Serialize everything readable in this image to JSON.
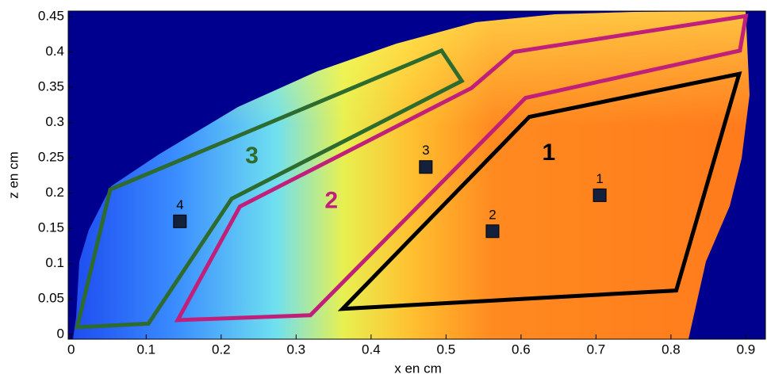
{
  "chart_data": {
    "type": "scatter",
    "xlabel": "x en cm",
    "ylabel": "z en cm",
    "xlim": [
      -0.004,
      0.926
    ],
    "ylim": [
      -0.007,
      0.458
    ],
    "xticks": [
      0,
      0.1,
      0.2,
      0.3,
      0.4,
      0.5,
      0.6,
      0.7,
      0.8,
      0.9
    ],
    "yticks": [
      0,
      0.05,
      0.1,
      0.15,
      0.2,
      0.25,
      0.3,
      0.35,
      0.4,
      0.45
    ],
    "points": {
      "labels": [
        "1",
        "2",
        "3",
        "4"
      ],
      "x": [
        0.705,
        0.562,
        0.473,
        0.145
      ],
      "y": [
        0.197,
        0.146,
        0.237,
        0.16
      ],
      "color": "#14213d"
    },
    "regions": [
      {
        "name": "1",
        "color": "#000000",
        "x": [
          0.362,
          0.611,
          0.891,
          0.807
        ],
        "y": [
          0.036,
          0.308,
          0.369,
          0.062
        ],
        "label_x": 0.637,
        "label_y": 0.256
      },
      {
        "name": "2",
        "color": "#c0207a",
        "x": [
          0.142,
          0.225,
          0.534,
          0.59,
          0.9,
          0.892,
          0.606,
          0.319
        ],
        "y": [
          0.02,
          0.181,
          0.349,
          0.4,
          0.451,
          0.402,
          0.335,
          0.027
        ],
        "label_x": 0.347,
        "label_y": 0.188
      },
      {
        "name": "3",
        "color": "#2e6b2e",
        "x": [
          0.008,
          0.052,
          0.494,
          0.521,
          0.214,
          0.103
        ],
        "y": [
          0.01,
          0.205,
          0.402,
          0.359,
          0.192,
          0.015
        ],
        "label_x": 0.241,
        "label_y": 0.251
      }
    ]
  }
}
